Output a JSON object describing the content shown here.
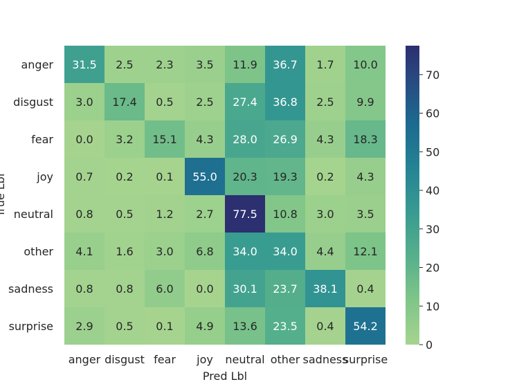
{
  "chart_data": {
    "type": "heatmap",
    "title": "",
    "xlabel": "Pred Lbl",
    "ylabel": "True Lbl",
    "x_categories": [
      "anger",
      "disgust",
      "fear",
      "joy",
      "neutral",
      "other",
      "sadness",
      "surprise"
    ],
    "y_categories": [
      "anger",
      "disgust",
      "fear",
      "joy",
      "neutral",
      "other",
      "sadness",
      "surprise"
    ],
    "values": [
      [
        31.5,
        2.5,
        2.3,
        3.5,
        11.9,
        36.7,
        1.7,
        10.0
      ],
      [
        3.0,
        17.4,
        0.5,
        2.5,
        27.4,
        36.8,
        2.5,
        9.9
      ],
      [
        0.0,
        3.2,
        15.1,
        4.3,
        28.0,
        26.9,
        4.3,
        18.3
      ],
      [
        0.7,
        0.2,
        0.1,
        55.0,
        20.3,
        19.3,
        0.2,
        4.3
      ],
      [
        0.8,
        0.5,
        1.2,
        2.7,
        77.5,
        10.8,
        3.0,
        3.5
      ],
      [
        4.1,
        1.6,
        3.0,
        6.8,
        34.0,
        34.0,
        4.4,
        12.1
      ],
      [
        0.8,
        0.8,
        6.0,
        0.0,
        30.1,
        23.7,
        38.1,
        0.4
      ],
      [
        2.9,
        0.5,
        0.1,
        4.9,
        13.6,
        23.5,
        0.4,
        54.2
      ]
    ],
    "colorbar": {
      "colormap": "crest",
      "range": [
        0,
        77.5
      ],
      "ticks": [
        0,
        10,
        20,
        30,
        40,
        50,
        60,
        70
      ]
    },
    "grid": false,
    "legend": "colorbar-right"
  }
}
